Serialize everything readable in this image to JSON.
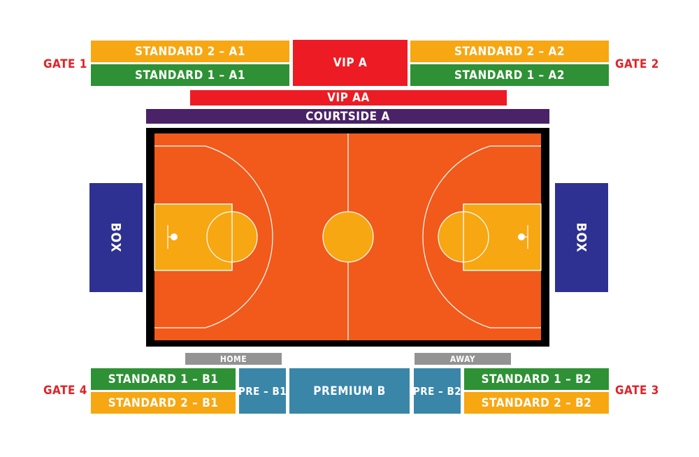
{
  "gates": {
    "gate1": "GATE 1",
    "gate2": "GATE 2",
    "gate3": "GATE 3",
    "gate4": "GATE 4"
  },
  "sections": {
    "standard2_a1": "STANDARD 2 – A1",
    "standard1_a1": "STANDARD 1 – A1",
    "vip_a": "VIP A",
    "standard2_a2": "STANDARD 2 – A2",
    "standard1_a2": "STANDARD 1 – A2",
    "vip_aa": "VIP AA",
    "courtside_a": "COURTSIDE A",
    "box_left": "BOX",
    "box_right": "BOX",
    "home": "HOME",
    "away": "AWAY",
    "standard1_b1": "STANDARD 1 – B1",
    "standard2_b1": "STANDARD 2 – B1",
    "pre_b1": "PRE – B1",
    "premium_b": "PREMIUM B",
    "pre_b2": "PRE – B2",
    "standard1_b2": "STANDARD 1 – B2",
    "standard2_b2": "STANDARD 2 – B2"
  },
  "colors": {
    "standard2": "#f7a712",
    "standard1": "#2e9135",
    "vip": "#ed1c24",
    "courtside": "#4a2268",
    "box": "#2e3192",
    "bench": "#939393",
    "premium": "#3a86a9",
    "gate": "#e32227",
    "court_border": "#000000",
    "court_floor": "#f15a1a",
    "court_paint": "#f7a712",
    "court_lines": "#ffffff"
  }
}
